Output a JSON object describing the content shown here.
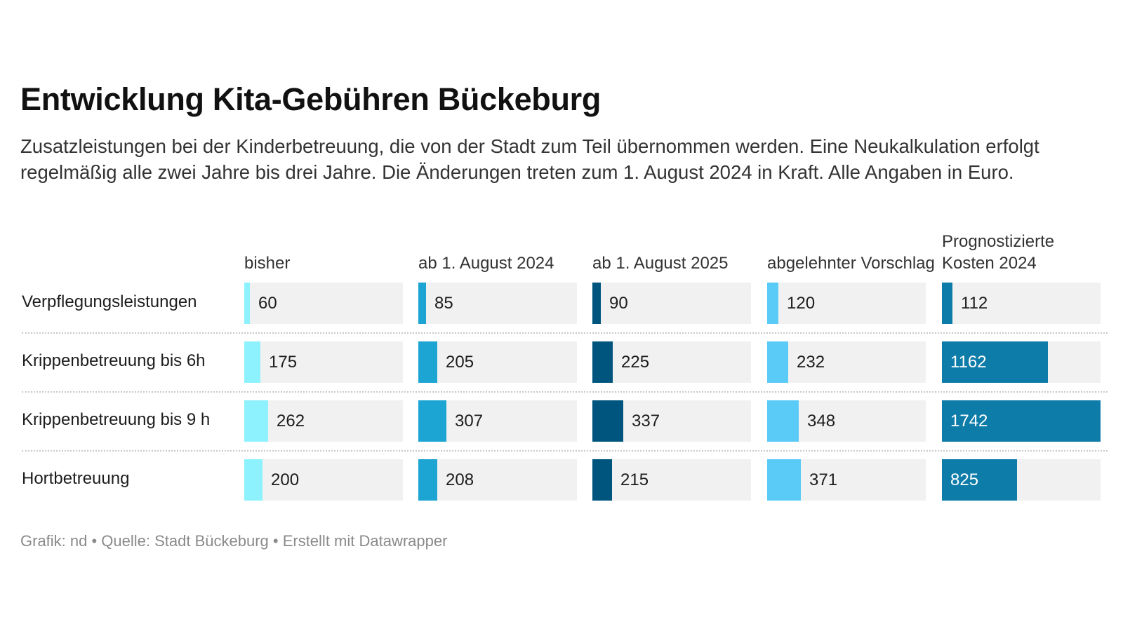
{
  "title": "Entwicklung Kita-Gebühren Bückeburg",
  "subtitle": "Zusatzleistungen bei der Kinderbetreuung, die von der Stadt zum Teil übernommen werden. Eine Neukalkulation erfolgt regelmäßig alle zwei Jahre bis drei Jahre. Die Änderungen treten zum 1. August 2024 in Kraft. Alle Angaben in Euro.",
  "footer": "Grafik: nd • Quelle: Stadt Bückeburg • Erstellt mit Datawrapper",
  "chart_data": {
    "type": "table",
    "columns": [
      {
        "name": "bisher",
        "color": "#8ef2fe",
        "max": 1742
      },
      {
        "name": "ab 1. August 2024",
        "color": "#1ca5d3",
        "max": 1742
      },
      {
        "name": "ab 1. August 2025",
        "color": "#00557e",
        "max": 1742
      },
      {
        "name": "abgelehnter Vorschlag",
        "color": "#5acbf7",
        "max": 1742
      },
      {
        "name": "Prognostizierte Kosten 2024",
        "color": "#0e7ca9",
        "max": 1742
      }
    ],
    "rows": [
      {
        "label": "Verpflegungsleistungen",
        "values": [
          60,
          85,
          90,
          120,
          112
        ]
      },
      {
        "label": "Krippenbetreuung bis 6h",
        "values": [
          175,
          205,
          225,
          232,
          1162
        ]
      },
      {
        "label": "Krippenbetreuung bis 9 h",
        "values": [
          262,
          307,
          337,
          348,
          1742
        ]
      },
      {
        "label": "Hortbetreuung",
        "values": [
          200,
          208,
          215,
          371,
          825
        ]
      }
    ]
  }
}
